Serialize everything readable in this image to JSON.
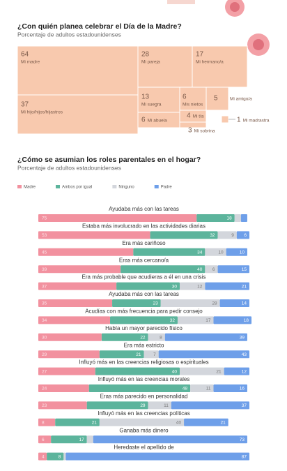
{
  "chart_data": [
    {
      "type": "treemap",
      "title": "¿Con quién planea celebrar el Día de la Madre?",
      "subtitle": "Porcentaje de adultos estadounidenses",
      "color": "#f8c9ae",
      "categories": [
        "Mi madre",
        "Mi hijo/hijos/hijastros",
        "Mi pareja",
        "Mi hermano/a",
        "Mi suegra",
        "Mi abuela",
        "Mis nietos",
        "Mi amigo/a",
        "Mi tía",
        "Mi madrastra",
        "Mi sobrina"
      ],
      "values": [
        64,
        37,
        28,
        17,
        13,
        6,
        6,
        5,
        4,
        1,
        3
      ]
    },
    {
      "type": "stacked-barh",
      "title": "¿Cómo se asumian los roles parentales en el hogar?",
      "subtitle": "Porcentaje de adultos estadounidenses",
      "xlim": [
        0,
        100
      ],
      "legend": "top-left",
      "categories": [
        "Ayudaba más con las tareas",
        "Estaba más involucrado en las actividades diarias",
        "Era más cariñoso",
        "Eras más cercano/a",
        "Era más probable que acudieras a él en una crisis",
        "Ayudaba más con las tareas",
        "Acudías con más frecuencia para pedir consejo",
        "Había un mayor parecido físico",
        "Era más estricto",
        "Influyó más en las creencias religiosas o espirituales",
        "Influyó más en las creencias morales",
        "Eras más parecido en personalidad",
        "Influyó más en las creencias políticas",
        "Ganaba más dinero",
        "Heredaste el apellido de"
      ],
      "series": [
        {
          "name": "Madre",
          "color": "#f2919f",
          "values": [
            75,
            53,
            45,
            39,
            37,
            35,
            34,
            30,
            29,
            27,
            24,
            23,
            8,
            6,
            4
          ]
        },
        {
          "name": "Ambos por igual",
          "color": "#5cb49c",
          "values": [
            18,
            32,
            34,
            40,
            30,
            23,
            32,
            22,
            21,
            40,
            48,
            29,
            21,
            17,
            8
          ]
        },
        {
          "name": "Ninguno",
          "color": "#d3d6dc",
          "values": [
            3,
            9,
            10,
            6,
            12,
            28,
            17,
            8,
            7,
            21,
            11,
            11,
            40,
            3,
            1
          ]
        },
        {
          "name": "Padre",
          "color": "#6e9fe9",
          "values": [
            3,
            6,
            10,
            15,
            21,
            14,
            18,
            39,
            43,
            12,
            16,
            37,
            21,
            73,
            87
          ]
        }
      ]
    }
  ]
}
